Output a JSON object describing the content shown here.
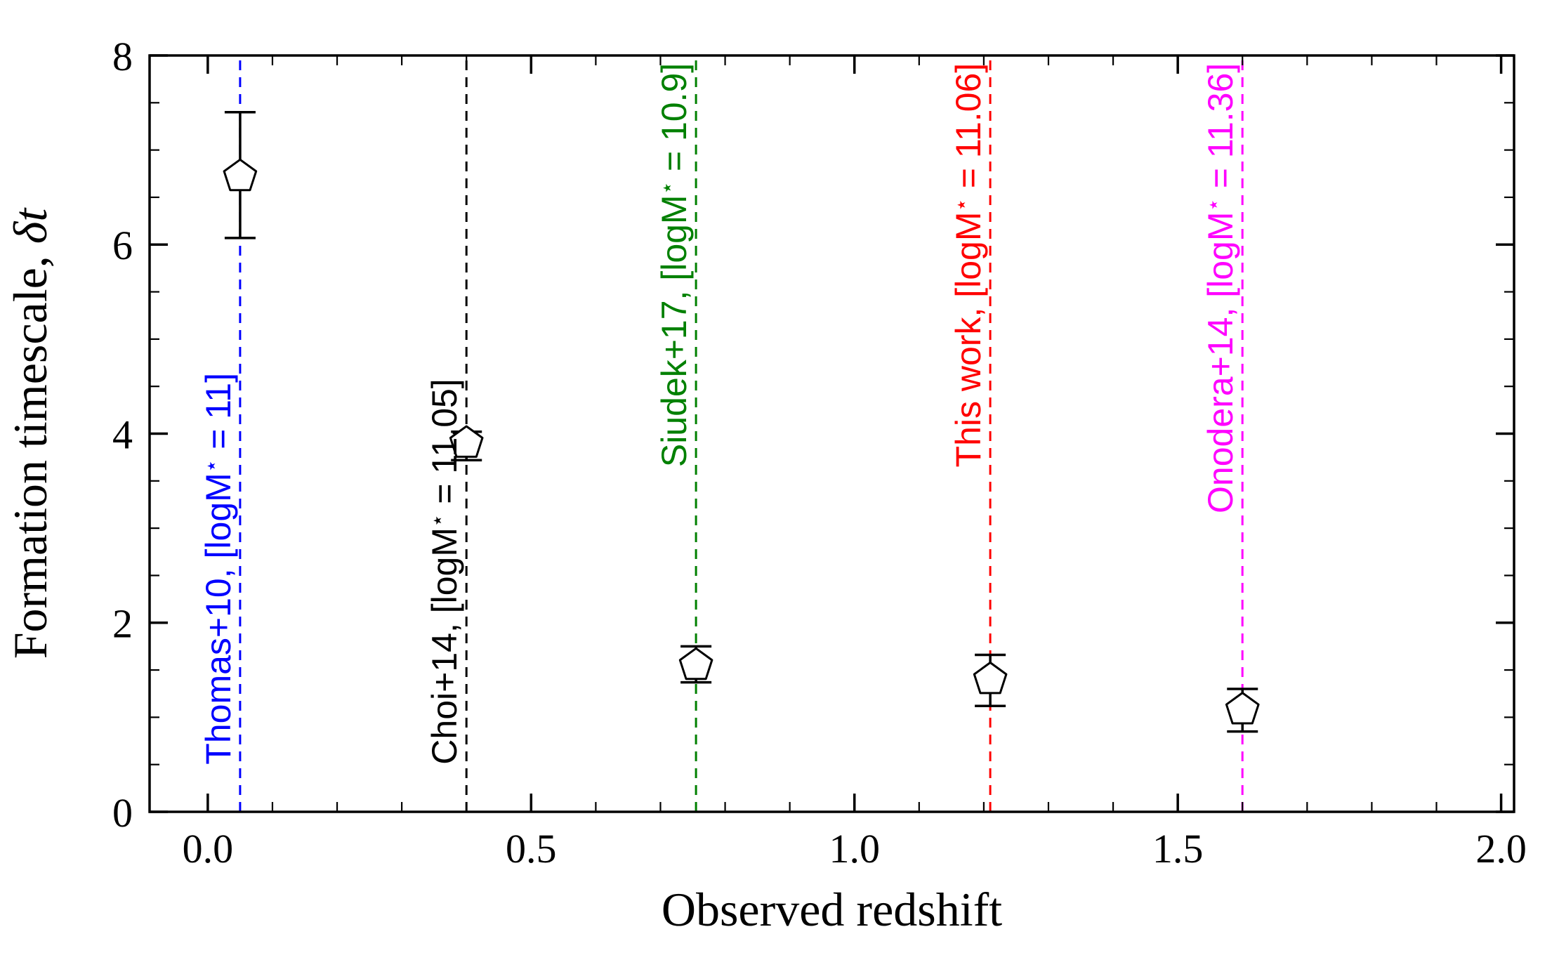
{
  "figure": {
    "background": "#ffffff",
    "frame_color": "#000000"
  },
  "chart_data": {
    "type": "scatter",
    "title": "",
    "xlabel": "Observed redshift",
    "ylabel": "Formation timescale, δt",
    "ylabel_parts": [
      {
        "text": "Formation timescale, ",
        "italic": false
      },
      {
        "text": "δt",
        "italic": true
      }
    ],
    "xlim": [
      -0.09,
      2.02
    ],
    "ylim": [
      0,
      8
    ],
    "x_major_ticks": [
      0,
      0.5,
      1,
      1.5,
      2
    ],
    "x_major_labels": [
      "0.0",
      "0.5",
      "1.0",
      "1.5",
      "2.0"
    ],
    "x_minor_step": 0.1,
    "y_major_ticks": [
      0,
      2,
      4,
      6,
      8
    ],
    "y_major_labels": [
      "0",
      "2",
      "4",
      "6",
      "8"
    ],
    "y_minor_step": 0.5,
    "grid": false,
    "legend": false,
    "marker": "pentagon",
    "marker_color": "#ffffff",
    "marker_edge": "#000000",
    "vline_style": "dashed",
    "series": [
      {
        "name": "Thomas+10",
        "label": "Thomas+10, [logM⋆ = 11]",
        "color": "#0000ff",
        "x": 0.05,
        "y": 6.72,
        "ylo": 6.07,
        "yhi": 7.4,
        "label_anchor": "start",
        "label_y": 0.5
      },
      {
        "name": "Choi+14",
        "label": "Choi+14, [logM⋆ = 11.05]",
        "color": "#000000",
        "x": 0.4,
        "y": 3.9,
        "ylo": 3.72,
        "yhi": 4.02,
        "label_anchor": "start",
        "label_y": 0.5
      },
      {
        "name": "Siudek+17",
        "label": "Siudek+17, [logM⋆ = 10.9]",
        "color": "#008000",
        "x": 0.755,
        "y": 1.55,
        "ylo": 1.37,
        "yhi": 1.75,
        "label_anchor": "end",
        "label_y": 7.92
      },
      {
        "name": "This work",
        "label": "This work, [logM⋆ = 11.06]",
        "color": "#ff0000",
        "x": 1.21,
        "y": 1.4,
        "ylo": 1.12,
        "yhi": 1.66,
        "label_anchor": "end",
        "label_y": 7.92
      },
      {
        "name": "Onodera+14",
        "label": "Onodera+14, [logM⋆ = 11.36]",
        "color": "#ff00ff",
        "x": 1.6,
        "y": 1.08,
        "ylo": 0.85,
        "yhi": 1.3,
        "label_anchor": "end",
        "label_y": 7.92
      }
    ]
  }
}
